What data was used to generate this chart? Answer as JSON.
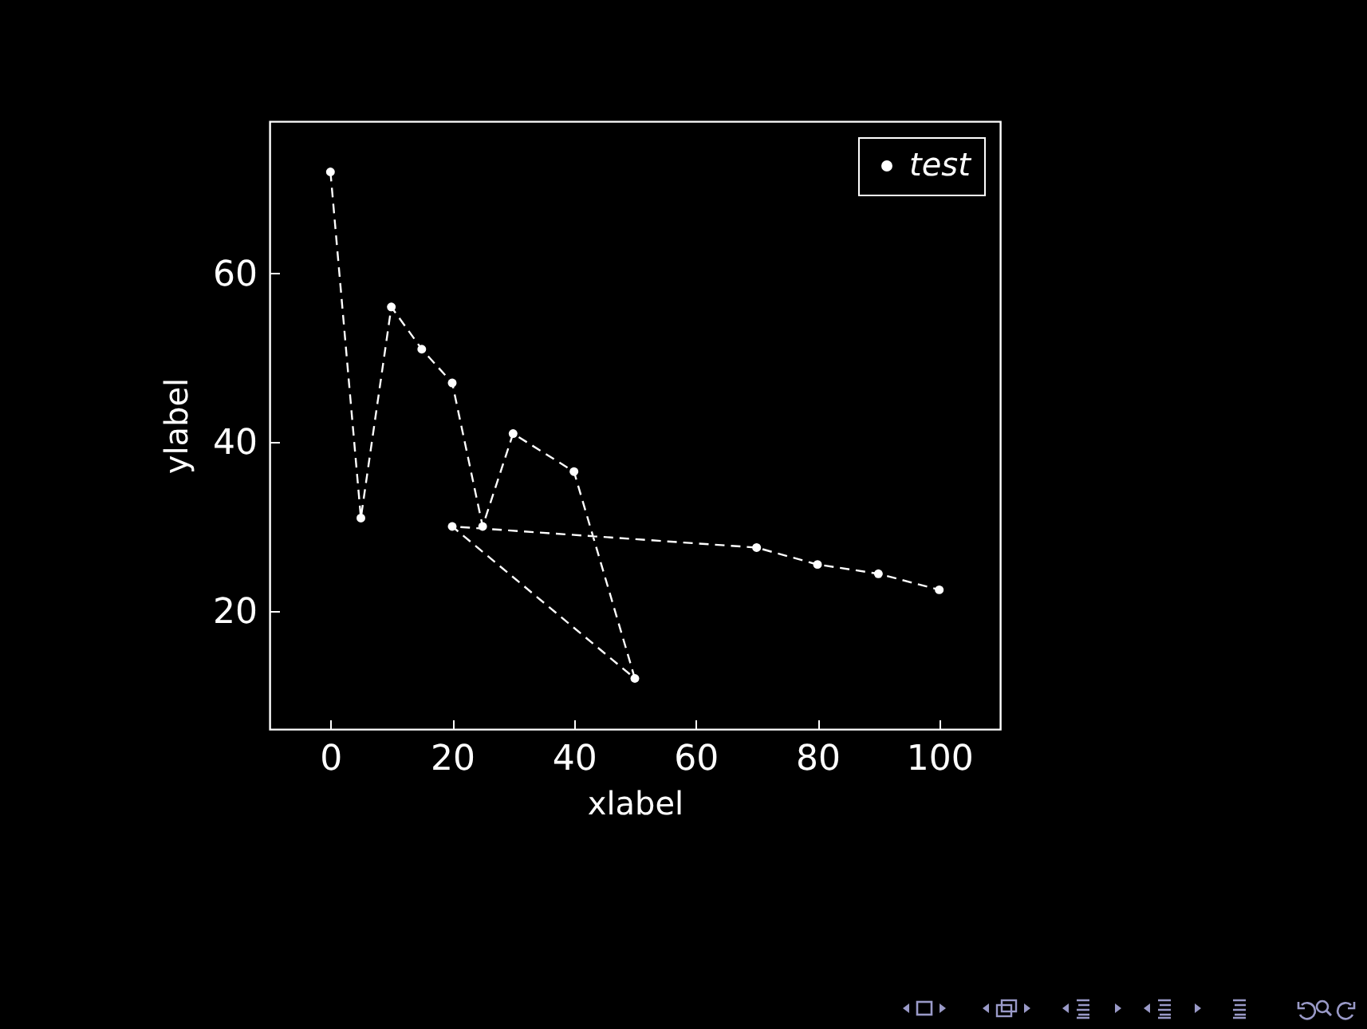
{
  "chart_data": {
    "type": "line",
    "xlabel": "xlabel",
    "ylabel": "ylabel",
    "x": [
      0,
      5,
      10,
      15,
      20,
      25,
      30,
      40,
      50,
      20,
      70,
      80,
      90,
      100
    ],
    "series": [
      {
        "name": "test",
        "color": "#ffffff",
        "values": [
          72,
          31,
          56,
          51,
          47,
          30,
          41,
          36.5,
          12,
          30,
          27.5,
          25.5,
          24.4,
          22.5
        ]
      }
    ],
    "xlim": [
      -10,
      110
    ],
    "xticks": [
      0,
      20,
      40,
      60,
      80,
      100
    ],
    "ylim": [
      6,
      78
    ],
    "yticks": [
      20,
      40,
      60
    ],
    "grid": false,
    "legend": "top right",
    "marker": "circle",
    "line_style": "dashed"
  }
}
